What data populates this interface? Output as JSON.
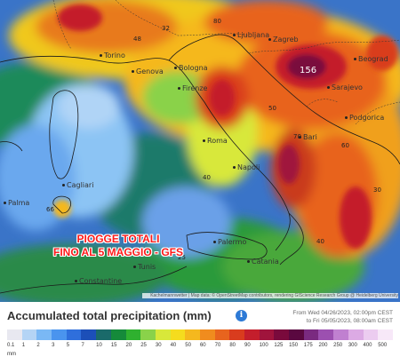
{
  "overlay": {
    "line1": "PIOGGE TOTALI",
    "line2": "FINO AL 5 MAGGIO - GFS"
  },
  "max_value": "156",
  "cities": [
    {
      "id": "ljubljana",
      "name": "Ljubljana"
    },
    {
      "id": "zagreb",
      "name": "Zagreb"
    },
    {
      "id": "sarajevo",
      "name": "Sarajevo"
    },
    {
      "id": "belgrade",
      "name": "Beograd"
    },
    {
      "id": "podgorica",
      "name": "Podgorica"
    },
    {
      "id": "torino",
      "name": "Torino"
    },
    {
      "id": "genova",
      "name": "Genova"
    },
    {
      "id": "bologna",
      "name": "Bologna"
    },
    {
      "id": "firenze",
      "name": "Firenze"
    },
    {
      "id": "roma",
      "name": "Roma"
    },
    {
      "id": "napoli",
      "name": "Napoli"
    },
    {
      "id": "bari",
      "name": "Bari"
    },
    {
      "id": "palermo",
      "name": "Palermo"
    },
    {
      "id": "catania",
      "name": "Catania"
    },
    {
      "id": "cagliari",
      "name": "Cagliari"
    },
    {
      "id": "palma",
      "name": "Palma"
    },
    {
      "id": "tunis",
      "name": "Tunis"
    },
    {
      "id": "constantine",
      "name": "Constantine"
    }
  ],
  "values": [
    "80",
    "70",
    "60",
    "40",
    "30",
    "66",
    "25",
    "40",
    "32",
    "48",
    "50"
  ],
  "attribution": "Kachelmannwetter | Map data: © OpenStreetMap contributors, rendering GIScience Research Group @ Heidelberg University",
  "legend": {
    "title": "Accumulated total precipitation (mm)",
    "info_icon": "info-icon",
    "period_line1": "From Wed 04/26/2023, 02:00pm CEST",
    "period_line2": "to Fri 05/05/2023, 08:00am CEST",
    "unit": "mm",
    "ticks": [
      "0.1",
      "1",
      "2",
      "3",
      "5",
      "7",
      "10",
      "15",
      "20",
      "25",
      "30",
      "40",
      "50",
      "60",
      "70",
      "80",
      "90",
      "100",
      "125",
      "150",
      "175",
      "200",
      "250",
      "300",
      "400",
      "500"
    ],
    "colors": [
      "#e8e8f0",
      "#b4d4f5",
      "#7ab8f5",
      "#4a94ee",
      "#2f6fdc",
      "#1c4fb8",
      "#1a6a6a",
      "#158a3a",
      "#2fb12f",
      "#8ad24a",
      "#d8e83a",
      "#f5dc1e",
      "#f5b81e",
      "#f08c1e",
      "#e8641e",
      "#d93c1e",
      "#c41e2c",
      "#a0143c",
      "#7a0a3c",
      "#5a0840",
      "#7a2a80",
      "#9c50b0",
      "#c080d0",
      "#dcaae4",
      "#ecccf0",
      "#f7e8f8"
    ]
  },
  "colors": {
    "overlay_text": "#ff1a1a",
    "sea": "#3a74c8",
    "land_wet": "#e8641e"
  }
}
